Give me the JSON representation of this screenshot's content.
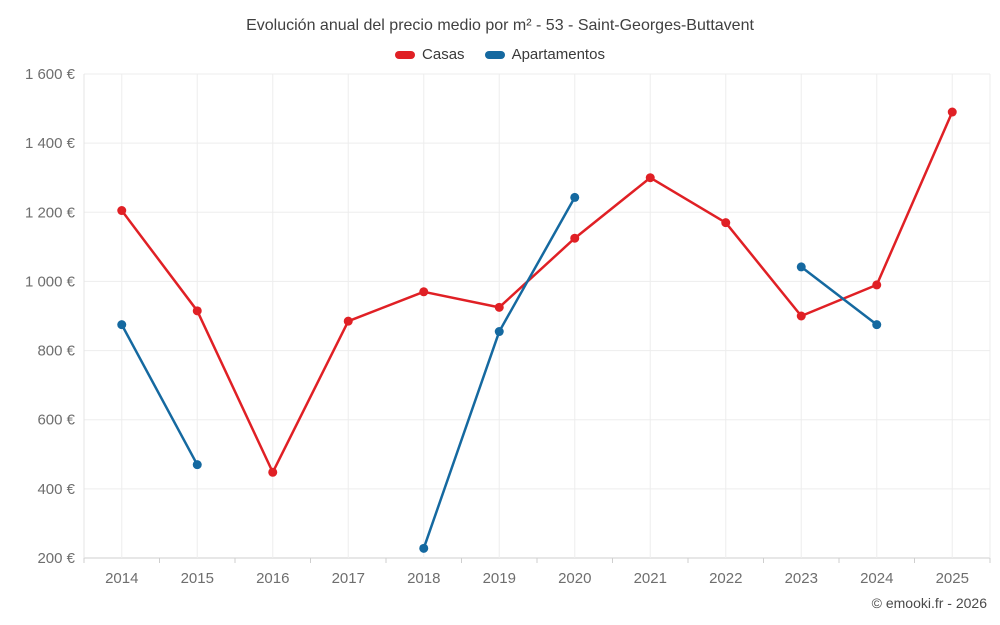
{
  "footer": {
    "credit": "© emooki.fr - 2026"
  },
  "chart_data": {
    "type": "line",
    "title": "Evolución anual del precio medio por m² - 53 - Saint-Georges-Buttavent",
    "categories": [
      "2014",
      "2015",
      "2016",
      "2017",
      "2018",
      "2019",
      "2020",
      "2021",
      "2022",
      "2023",
      "2024",
      "2025"
    ],
    "series": [
      {
        "name": "Casas",
        "color": "#e02025",
        "values": [
          1205,
          915,
          448,
          885,
          970,
          925,
          1125,
          1300,
          1170,
          900,
          990,
          1490
        ]
      },
      {
        "name": "Apartamentos",
        "color": "#1569a0",
        "values": [
          875,
          470,
          null,
          null,
          228,
          855,
          1243,
          null,
          null,
          1042,
          875,
          null
        ]
      }
    ],
    "xlabel": "",
    "ylabel": "",
    "ylim": [
      200,
      1600
    ],
    "ytick_step": 200,
    "ytick_labels": [
      "200 €",
      "400 €",
      "600 €",
      "800 €",
      "1 000 €",
      "1 200 €",
      "1 400 €",
      "1 600 €"
    ],
    "currency": "€",
    "grid": true,
    "legend_position": "top",
    "marker": "circle"
  }
}
